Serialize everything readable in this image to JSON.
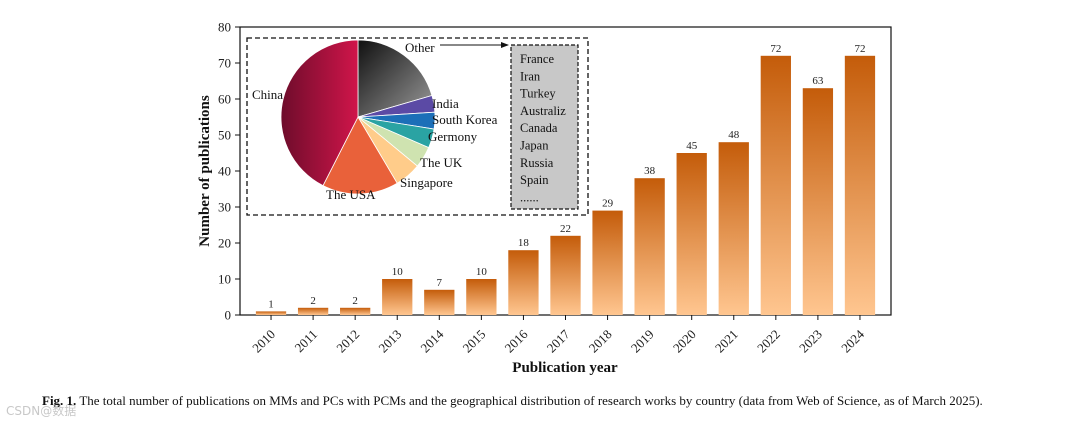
{
  "chart_data": [
    {
      "type": "bar",
      "categories": [
        "2010",
        "2011",
        "2012",
        "2013",
        "2014",
        "2015",
        "2016",
        "2017",
        "2018",
        "2019",
        "2020",
        "2021",
        "2022",
        "2023",
        "2024"
      ],
      "values": [
        1,
        2,
        2,
        10,
        7,
        10,
        18,
        22,
        29,
        38,
        45,
        48,
        72,
        63,
        72
      ],
      "xlabel": "Publication year",
      "ylabel": "Number of publications",
      "ylim": [
        0,
        80
      ],
      "yticks": [
        0,
        10,
        20,
        30,
        40,
        50,
        60,
        70,
        80
      ],
      "grid": false,
      "colors": {
        "bar_top": "#c45c0a",
        "bar_bottom": "#ffc690"
      }
    },
    {
      "type": "pie",
      "labels": [
        "Other",
        "India",
        "South Korea",
        "Germony",
        "The UK",
        "Singapore",
        "The USA",
        "China"
      ],
      "values": [
        20.5,
        3.5,
        3.5,
        4.0,
        4.5,
        5.5,
        16.0,
        42.5
      ],
      "colors": [
        "#2f2f2f",
        "#5b4aa5",
        "#1c6fb8",
        "#2aa3a3",
        "#cfe3b0",
        "#ffcc8a",
        "#e9613a",
        "#b5123f"
      ],
      "other_countries": [
        "France",
        "Iran",
        "Turkey",
        "Australiz",
        "Canada",
        "Japan",
        "Russia",
        "Spain",
        "......"
      ]
    }
  ],
  "caption": {
    "label": "Fig. 1.",
    "text": "The total number of publications on MMs and PCs with PCMs and the geographical distribution of research works by country (data from Web of Science, as of March 2025)."
  },
  "watermark": "CSDN@数据"
}
